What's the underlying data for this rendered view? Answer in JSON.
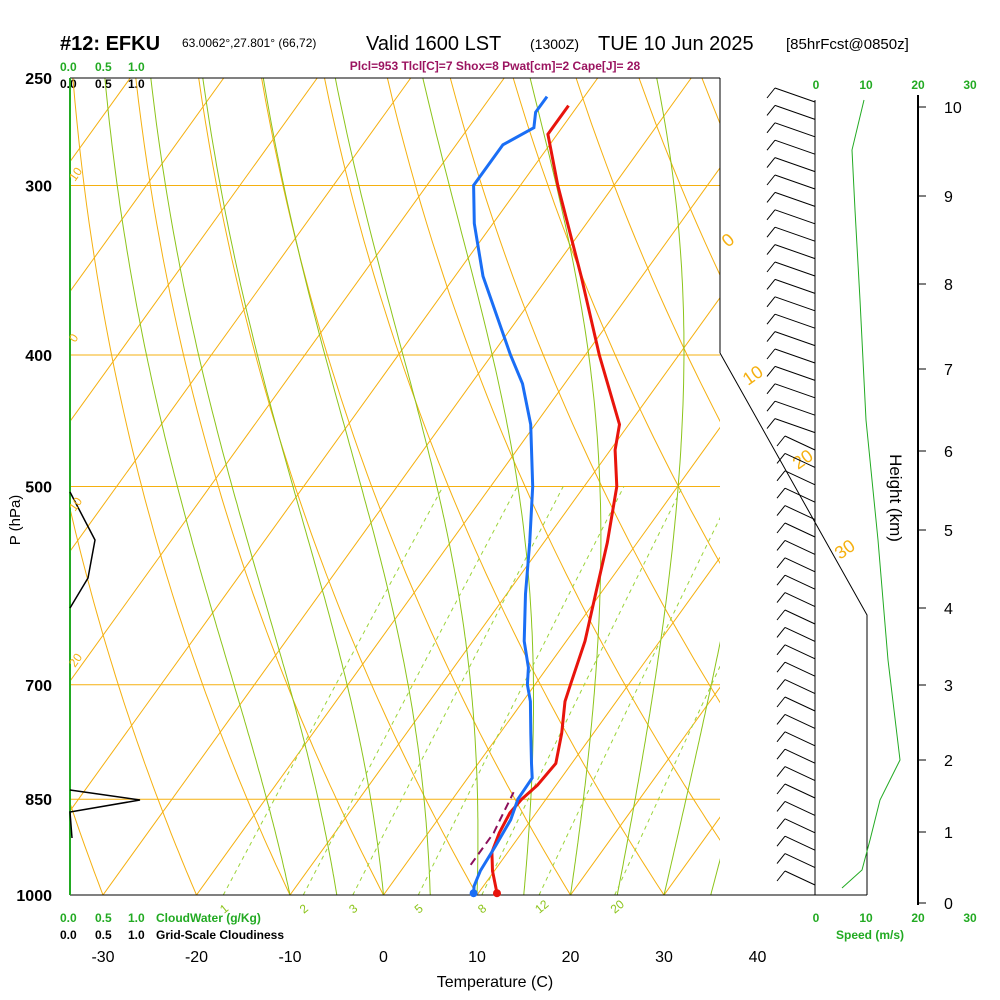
{
  "header": {
    "station": "#12: EFKU",
    "coords": "63.0062°,27.801° (66,72)",
    "valid": "Valid 1600 LST",
    "zulu": "(1300Z)",
    "date": "TUE 10 Jun 2025",
    "fcst": "[85hrFcst@0850z]",
    "params": "Plcl=953 Tlcl[C]=7 Shox=8 Pwat[cm]=2 Cape[J]= 28"
  },
  "colors": {
    "temperature": "#e8140c",
    "dewpoint": "#1a6ef5",
    "parcel": "#8b0f5a",
    "isotherm_isobar": "#f5b010",
    "dry_adiabat": "#f5b010",
    "moist_adiabat": "#8cc41a",
    "mixing_ratio": "#9cd43a",
    "cloud_scale_green": "#22aa22",
    "params_text": "#9b1460"
  },
  "chart_data": {
    "type": "skew-t",
    "xlabel": "Temperature (C)",
    "ylabel": "P (hPa)",
    "y2label": "Height (km)",
    "pressure_ticks": [
      "250",
      "300",
      "400",
      "500",
      "700",
      "850",
      "1000"
    ],
    "temperature_ticks": [
      "-30",
      "-20",
      "-10",
      "0",
      "10",
      "20",
      "30",
      "40"
    ],
    "height_ticks": [
      "0",
      "1",
      "2",
      "3",
      "4",
      "5",
      "6",
      "7",
      "8",
      "9",
      "10"
    ],
    "height_values_km": [
      0,
      1,
      2,
      3,
      4,
      5,
      6,
      7,
      8,
      9,
      10
    ],
    "temperature_profile": [
      {
        "p": 997,
        "t": 12.0
      },
      {
        "p": 960,
        "t": 9.8
      },
      {
        "p": 930,
        "t": 8.3
      },
      {
        "p": 900,
        "t": 7.6
      },
      {
        "p": 870,
        "t": 7.2
      },
      {
        "p": 850,
        "t": 7.4
      },
      {
        "p": 830,
        "t": 8.0
      },
      {
        "p": 800,
        "t": 8.3
      },
      {
        "p": 760,
        "t": 6.6
      },
      {
        "p": 720,
        "t": 4.5
      },
      {
        "p": 700,
        "t": 3.8
      },
      {
        "p": 650,
        "t": 2.0
      },
      {
        "p": 600,
        "t": -0.5
      },
      {
        "p": 550,
        "t": -3.2
      },
      {
        "p": 500,
        "t": -6.5
      },
      {
        "p": 470,
        "t": -9.5
      },
      {
        "p": 450,
        "t": -11.0
      },
      {
        "p": 400,
        "t": -18.5
      },
      {
        "p": 350,
        "t": -26.5
      },
      {
        "p": 300,
        "t": -36.0
      },
      {
        "p": 275,
        "t": -41.0
      },
      {
        "p": 262,
        "t": -41.0
      }
    ],
    "dewpoint_profile": [
      {
        "p": 997,
        "t": 9.5
      },
      {
        "p": 985,
        "t": 9.0
      },
      {
        "p": 960,
        "t": 8.5
      },
      {
        "p": 920,
        "t": 8.2
      },
      {
        "p": 880,
        "t": 7.8
      },
      {
        "p": 850,
        "t": 7.0
      },
      {
        "p": 820,
        "t": 6.9
      },
      {
        "p": 800,
        "t": 5.7
      },
      {
        "p": 760,
        "t": 3.3
      },
      {
        "p": 720,
        "t": 0.8
      },
      {
        "p": 700,
        "t": -0.8
      },
      {
        "p": 680,
        "t": -2.0
      },
      {
        "p": 650,
        "t": -4.5
      },
      {
        "p": 600,
        "t": -8.0
      },
      {
        "p": 550,
        "t": -11.5
      },
      {
        "p": 500,
        "t": -15.5
      },
      {
        "p": 450,
        "t": -20.5
      },
      {
        "p": 420,
        "t": -24.5
      },
      {
        "p": 400,
        "t": -28.0
      },
      {
        "p": 350,
        "t": -37.0
      },
      {
        "p": 320,
        "t": -42.0
      },
      {
        "p": 300,
        "t": -45.0
      },
      {
        "p": 280,
        "t": -45.0
      },
      {
        "p": 272,
        "t": -43.0
      },
      {
        "p": 265,
        "t": -44.0
      },
      {
        "p": 258,
        "t": -44.0
      }
    ],
    "parcel_profile": [
      {
        "p": 950,
        "t": 7.0
      },
      {
        "p": 900,
        "t": 7.0
      },
      {
        "p": 870,
        "t": 6.5
      },
      {
        "p": 840,
        "t": 6.0
      }
    ],
    "isobars": [
      250,
      300,
      400,
      500,
      700,
      850,
      1000
    ],
    "isotherms": [
      -30,
      -20,
      -10,
      0,
      10,
      20,
      30,
      40
    ],
    "dry_adiabats": [
      -30,
      -20,
      -10,
      0,
      10,
      20,
      30,
      40,
      50,
      60,
      70,
      80,
      90,
      100,
      110,
      120,
      130,
      140,
      150
    ],
    "moist_adiabats": [
      -10,
      -5,
      0,
      5,
      10,
      15,
      20,
      25,
      30,
      35
    ],
    "mixing_ratios": [
      "1",
      "2",
      "3",
      "5",
      "8",
      "12",
      "20"
    ],
    "mixing_ratio_values": [
      1,
      2,
      3,
      5,
      8,
      12,
      20
    ],
    "diagram_labels": [
      "10",
      "0",
      "10",
      "20",
      "30",
      "0",
      "10",
      "20"
    ],
    "wind_barbs_count": 46,
    "cloud_scale": {
      "top_green": [
        "0.0",
        "0.5",
        "1.0"
      ],
      "top_black": [
        "0.0",
        "0.5",
        "1.0"
      ],
      "bottom_green": [
        "0.0",
        "0.5",
        "1.0"
      ],
      "bottom_black": [
        "0.0",
        "0.5",
        "1.0"
      ],
      "cloudwater_label": "CloudWater (g/Kg)",
      "cloudiness_label": "Grid-Scale Cloudiness"
    },
    "speed_scale": {
      "top": [
        "0",
        "10",
        "20",
        "30"
      ],
      "bottom": [
        "0",
        "10",
        "20",
        "30"
      ],
      "label": "Speed (m/s)"
    }
  }
}
